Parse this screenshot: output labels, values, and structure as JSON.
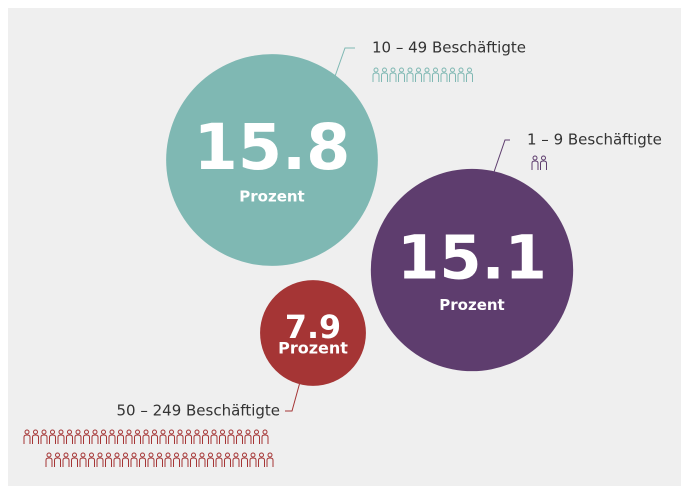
{
  "chart_data": {
    "type": "bubble",
    "categories": [
      "10 – 49 Beschäftigte",
      "1 – 9 Beschäftigte",
      "50 – 249 Beschäftigte"
    ],
    "values": [
      15.8,
      15.1,
      7.9
    ],
    "unit_label": "Prozent",
    "colors": [
      "#7fb8b3",
      "#5e3d6e",
      "#a53535"
    ]
  }
}
